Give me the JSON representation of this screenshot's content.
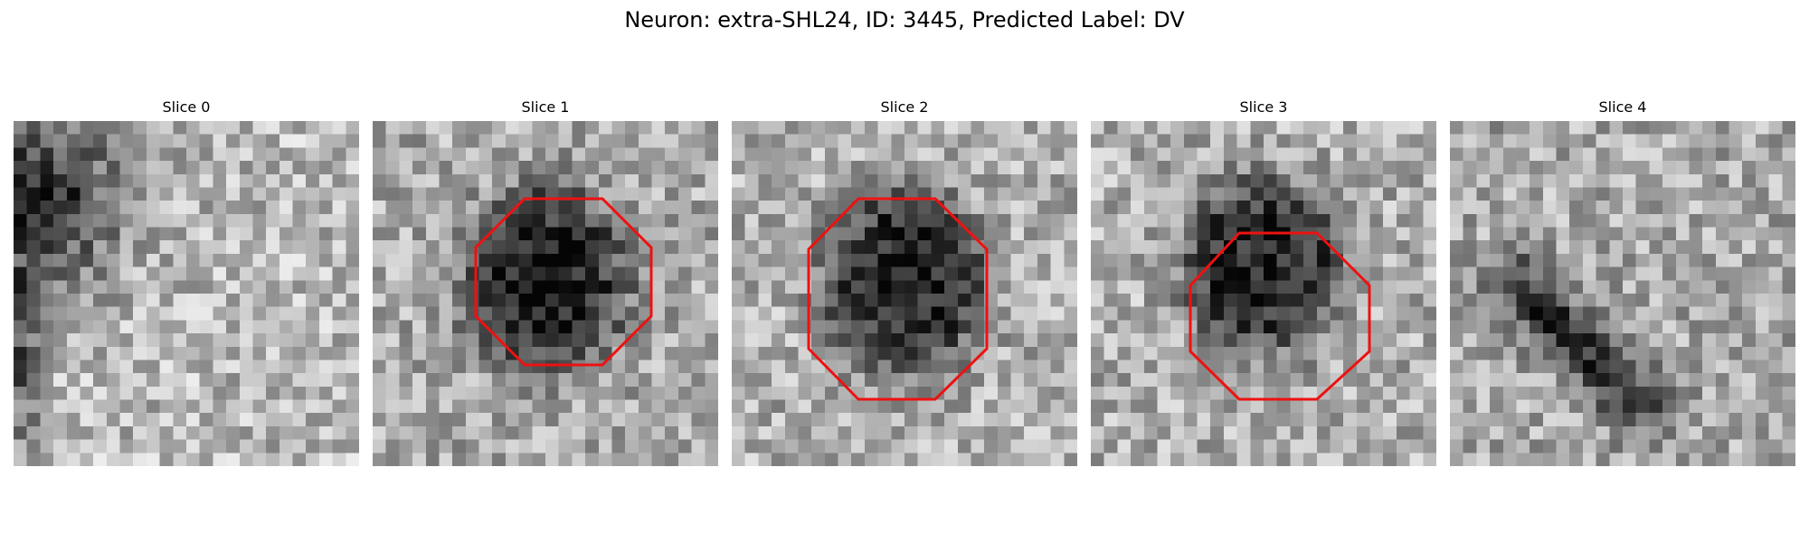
{
  "figure": {
    "title": "Neuron: extra-SHL24, ID: 3445, Predicted Label: DV"
  },
  "colors": {
    "contour": "#ee1111",
    "background": "#ffffff"
  },
  "panels": [
    {
      "title": "Slice 0",
      "has_contour": false,
      "dark_feature": "left-edge-blob"
    },
    {
      "title": "Slice 1",
      "has_contour": true,
      "dark_feature": "center-blob"
    },
    {
      "title": "Slice 2",
      "has_contour": true,
      "dark_feature": "center-blob"
    },
    {
      "title": "Slice 3",
      "has_contour": true,
      "dark_feature": "upper-center-blob"
    },
    {
      "title": "Slice 4",
      "has_contour": false,
      "dark_feature": "diagonal-streak"
    }
  ]
}
